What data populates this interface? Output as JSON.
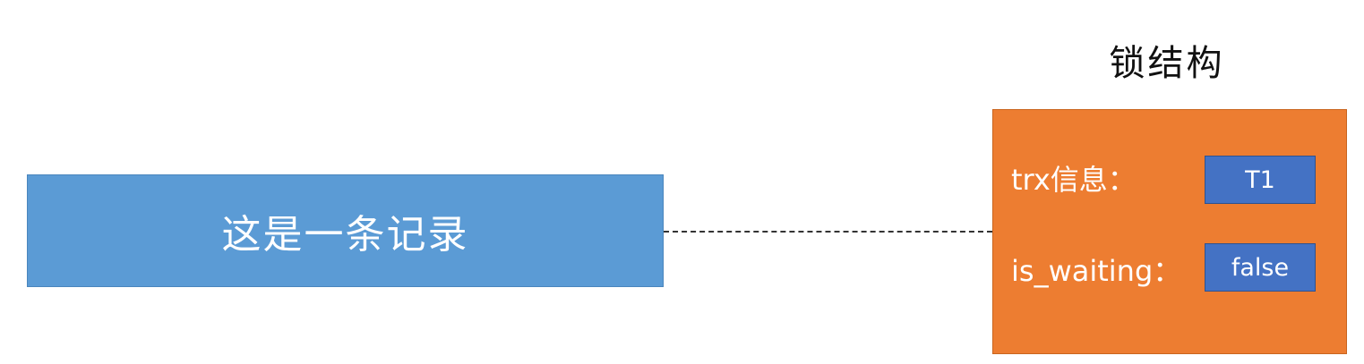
{
  "record": {
    "label": "这是一条记录"
  },
  "lock_structure": {
    "title": "锁结构",
    "fields": [
      {
        "label": "trx信息：",
        "value": "T1"
      },
      {
        "label": "is_waiting：",
        "value": "false"
      }
    ]
  },
  "colors": {
    "record_fill": "#5b9bd5",
    "lock_fill": "#ed7d31",
    "value_fill": "#4472c4"
  }
}
